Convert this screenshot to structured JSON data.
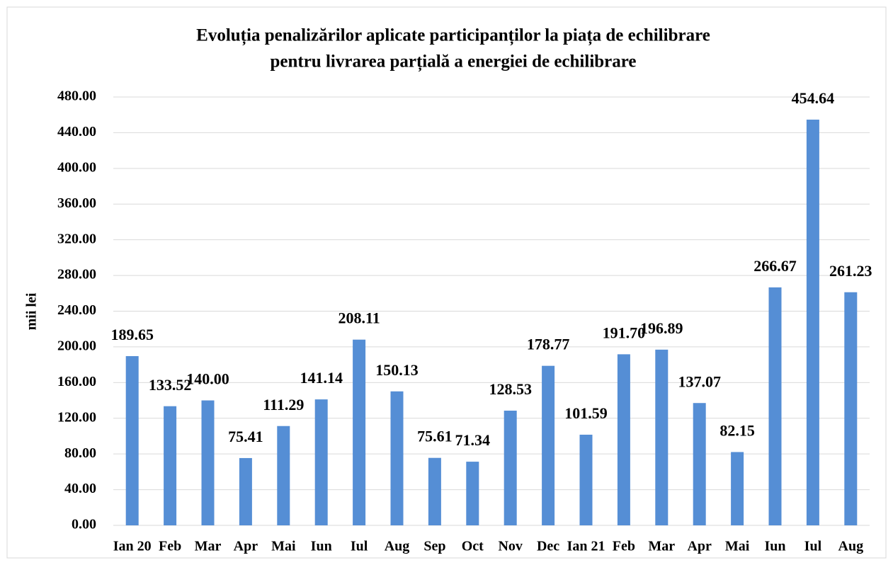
{
  "chart_data": {
    "type": "bar",
    "title": [
      "Evoluția penalizărilor aplicate participanților la piața de echilibrare",
      "pentru livrarea parțială a energiei de echilibrare"
    ],
    "y_label": "mii lei",
    "categories": [
      "Ian 20",
      "Feb",
      "Mar",
      "Apr",
      "Mai",
      "Iun",
      "Iul",
      "Aug",
      "Sep",
      "Oct",
      "Nov",
      "Dec",
      "Ian 21",
      "Feb",
      "Mar",
      "Apr",
      "Mai",
      "Iun",
      "Iul",
      "Aug"
    ],
    "values": [
      189.65,
      133.52,
      140.0,
      75.41,
      111.29,
      141.14,
      208.11,
      150.13,
      75.61,
      71.34,
      128.53,
      178.77,
      101.59,
      191.7,
      196.89,
      137.07,
      82.15,
      266.67,
      454.64,
      261.23
    ],
    "value_labels": [
      "189.65",
      "133.52",
      "140.00",
      "75.41",
      "111.29",
      "141.14",
      "208.11",
      "150.13",
      "75.61",
      "71.34",
      "128.53",
      "178.77",
      "101.59",
      "191.70",
      "196.89",
      "137.07",
      "82.15",
      "266.67",
      "454.64",
      "261.23"
    ],
    "color": "#558ed5",
    "ylim": [
      0,
      480
    ],
    "yticks": [
      {
        "value": 0,
        "label": "0.00"
      },
      {
        "value": 40,
        "label": "40.00"
      },
      {
        "value": 80,
        "label": "80.00"
      },
      {
        "value": 120,
        "label": "120.00"
      },
      {
        "value": 160,
        "label": "160.00"
      },
      {
        "value": 200,
        "label": "200.00"
      },
      {
        "value": 240,
        "label": "240.00"
      },
      {
        "value": 280,
        "label": "280.00"
      },
      {
        "value": 320,
        "label": "320.00"
      },
      {
        "value": 360,
        "label": "360.00"
      },
      {
        "value": 400,
        "label": "400.00"
      },
      {
        "value": 440,
        "label": "440.00"
      },
      {
        "value": 480,
        "label": "480.00"
      }
    ],
    "grid": true
  }
}
